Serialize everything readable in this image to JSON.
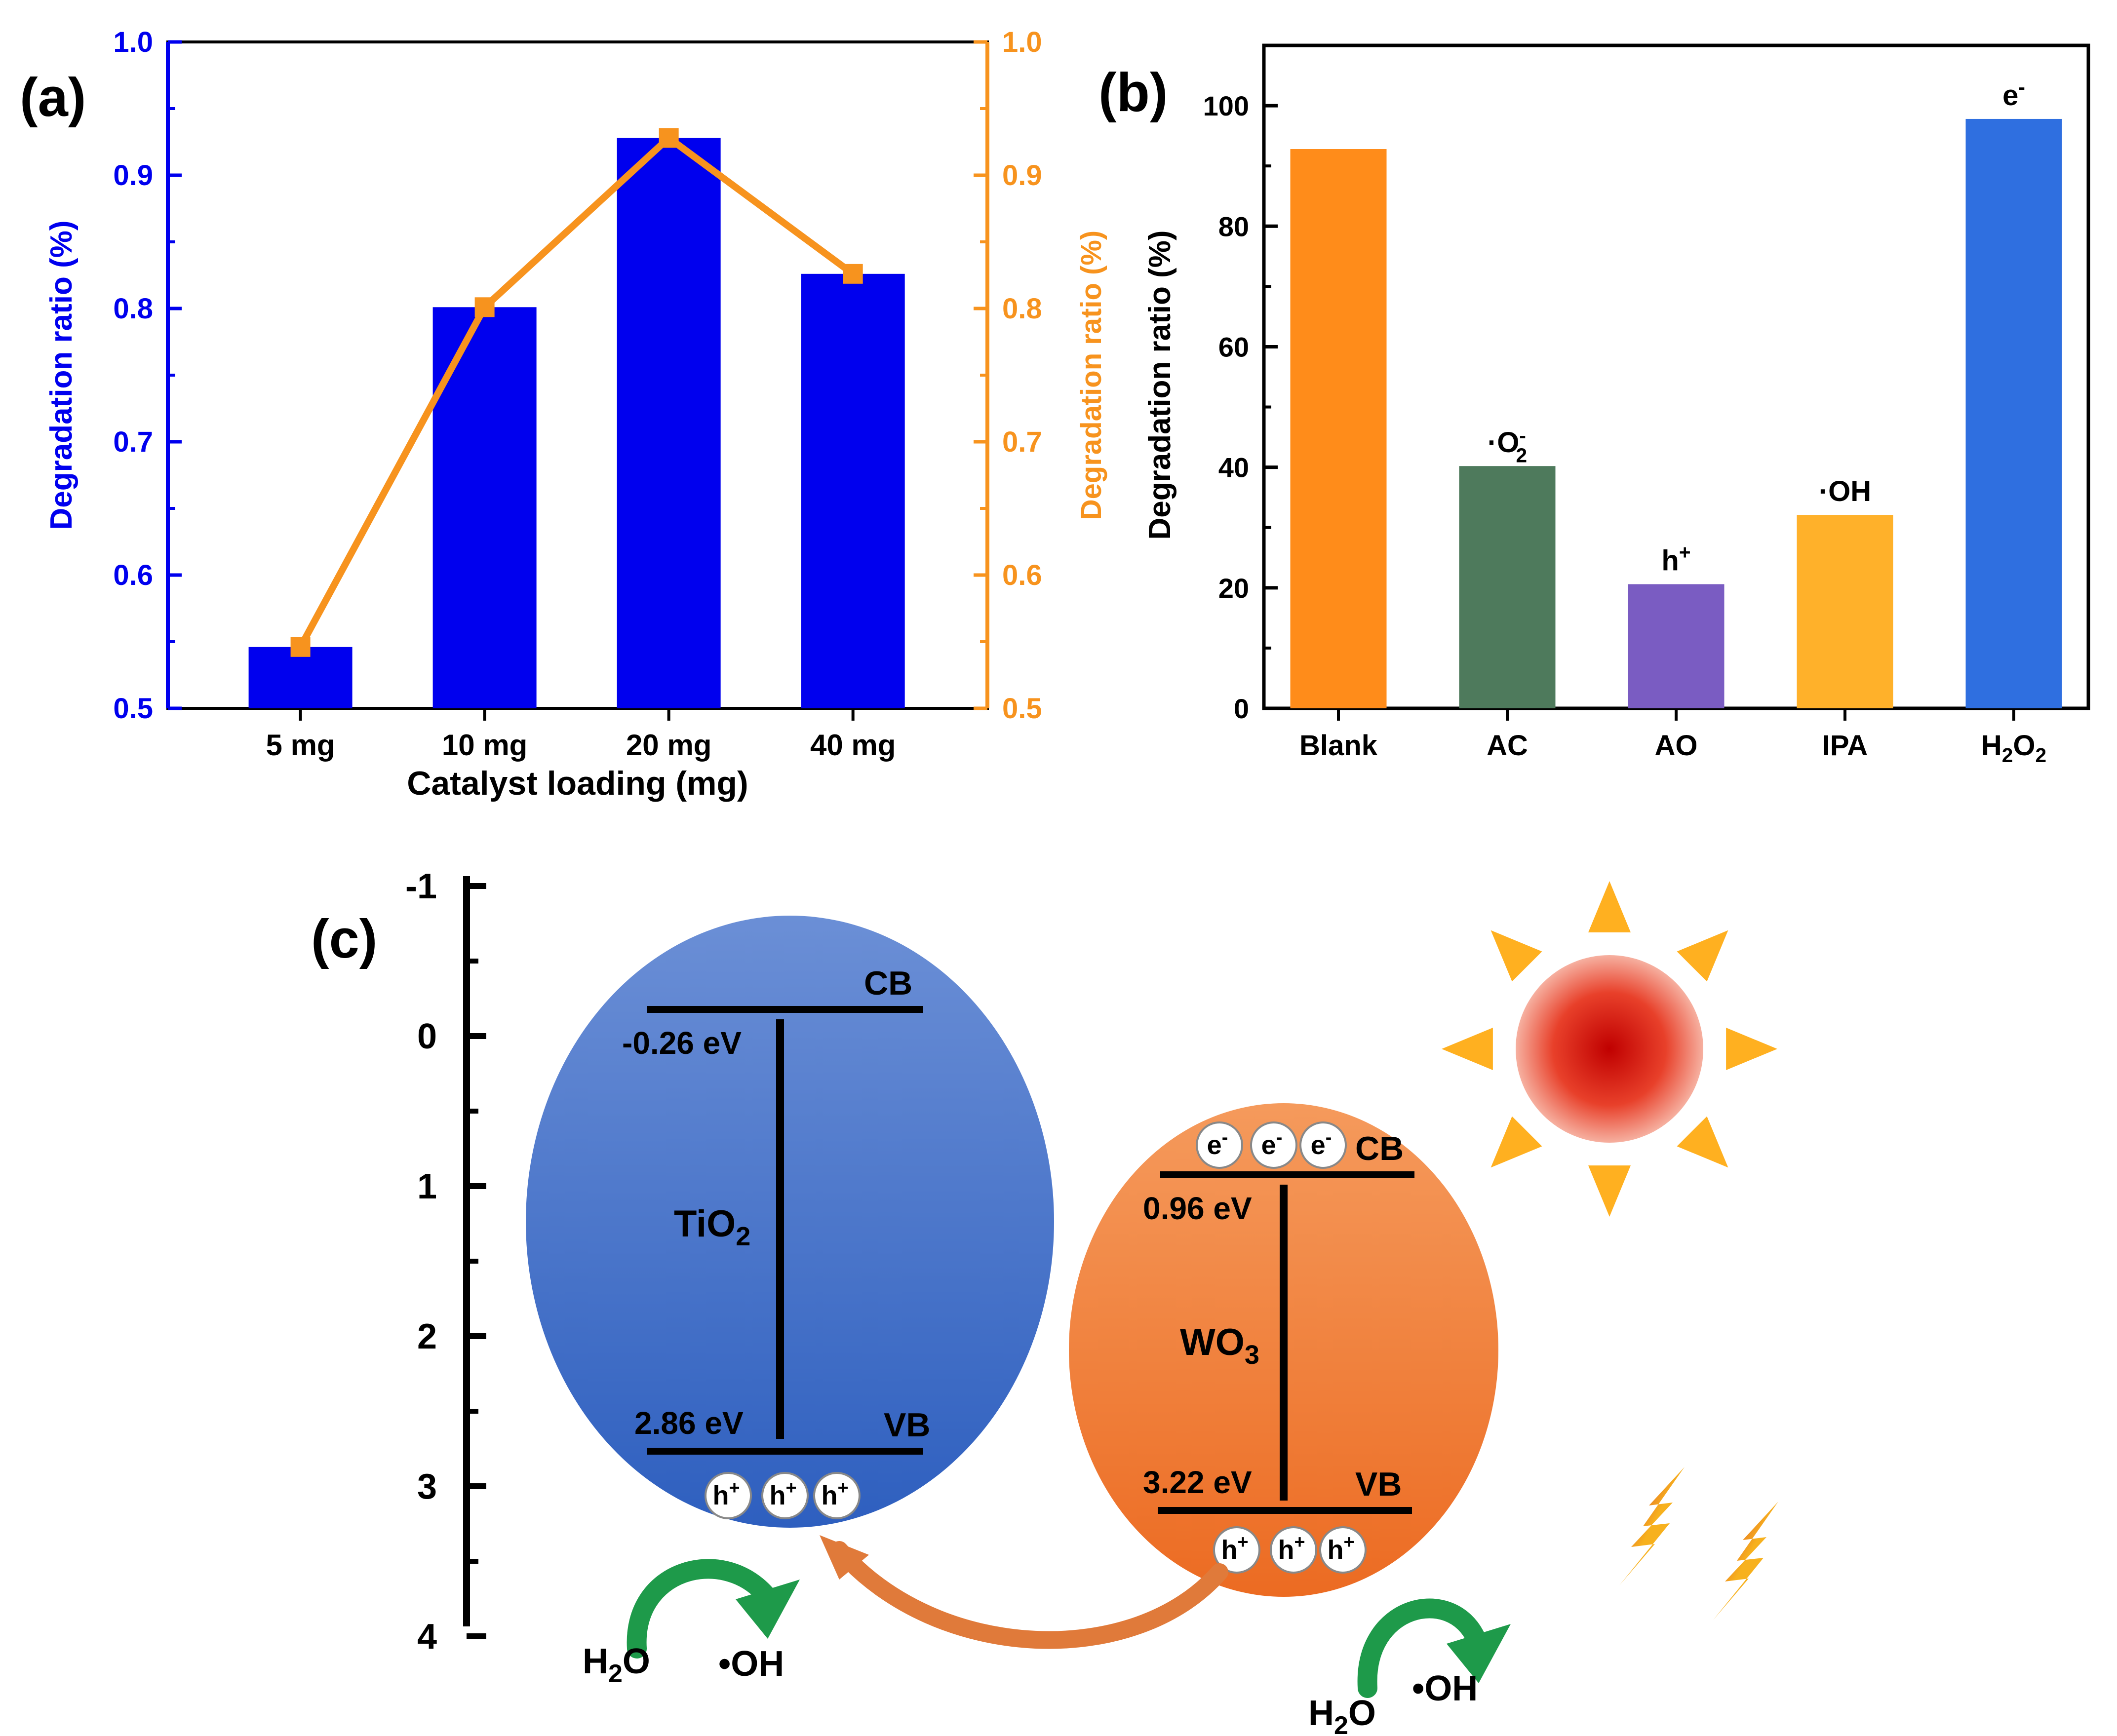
{
  "colors": {
    "blue": "#0000ee",
    "orange": "#f7931e",
    "black": "#000000",
    "blank_bar": "#ff8c1a",
    "ac_bar": "#4e7a5c",
    "ao_bar": "#7a5cc2",
    "ipa_bar": "#ffb12a",
    "h2o2_bar": "#2f6fe0",
    "tio2_ellipse": "#3f6fc7",
    "wo3_ellipse": "#f07a33",
    "sun": "#d41e10",
    "ray": "#ffb020"
  },
  "chart_data": [
    {
      "id": "a",
      "type": "bar+line",
      "panel_label": "(a)",
      "title": "",
      "categories": [
        "5 mg",
        "10 mg",
        "20 mg",
        "40 mg"
      ],
      "series": [
        {
          "name": "bars",
          "axis": "left",
          "color": "blue",
          "values": [
            0.546,
            0.801,
            0.928,
            0.826
          ]
        },
        {
          "name": "line",
          "axis": "right",
          "color": "orange",
          "values": [
            0.546,
            0.801,
            0.928,
            0.826
          ]
        }
      ],
      "xlabel": "Catalyst loading (mg)",
      "ylabel_left": "Degradation ratio (%)",
      "ylabel_right": "Degradation ratio (%)",
      "ylim": [
        0.5,
        1.0
      ],
      "yticks": [
        "0.5",
        "0.6",
        "0.7",
        "0.8",
        "0.9",
        "1.0"
      ]
    },
    {
      "id": "b",
      "type": "bar",
      "panel_label": "(b)",
      "title": "",
      "categories": [
        "Blank",
        "AC",
        "AO",
        "IPA",
        "H2O2"
      ],
      "values": [
        92.8,
        40.2,
        20.6,
        32.1,
        97.8
      ],
      "annotations": [
        "",
        "·O2-",
        "h+",
        "·OH",
        "e-"
      ],
      "xlabel": "",
      "ylabel": "Degradation ratio  (%)",
      "ylim": [
        0,
        110
      ],
      "yticks": [
        "0",
        "20",
        "40",
        "60",
        "80",
        "100"
      ]
    },
    {
      "id": "c",
      "type": "diagram",
      "panel_label": "(c)",
      "axis_ticks": [
        "-1",
        "0",
        "1",
        "2",
        "3",
        "4"
      ],
      "tio2": {
        "name": "TiO2",
        "cb_label": "CB",
        "vb_label": "VB",
        "cb_energy": "-0.26 eV",
        "vb_energy": "2.86 eV",
        "cb_value": -0.26,
        "vb_value": 2.86
      },
      "wo3": {
        "name": "WO3",
        "cb_label": "CB",
        "vb_label": "VB",
        "cb_energy": "0.96 eV",
        "vb_energy": "3.22 eV",
        "cb_value": 0.96,
        "vb_value": 3.22
      },
      "hole_symbol": "h+",
      "electron_symbol": "e-",
      "water_label": "H2O",
      "radical_label": "•OH"
    }
  ]
}
